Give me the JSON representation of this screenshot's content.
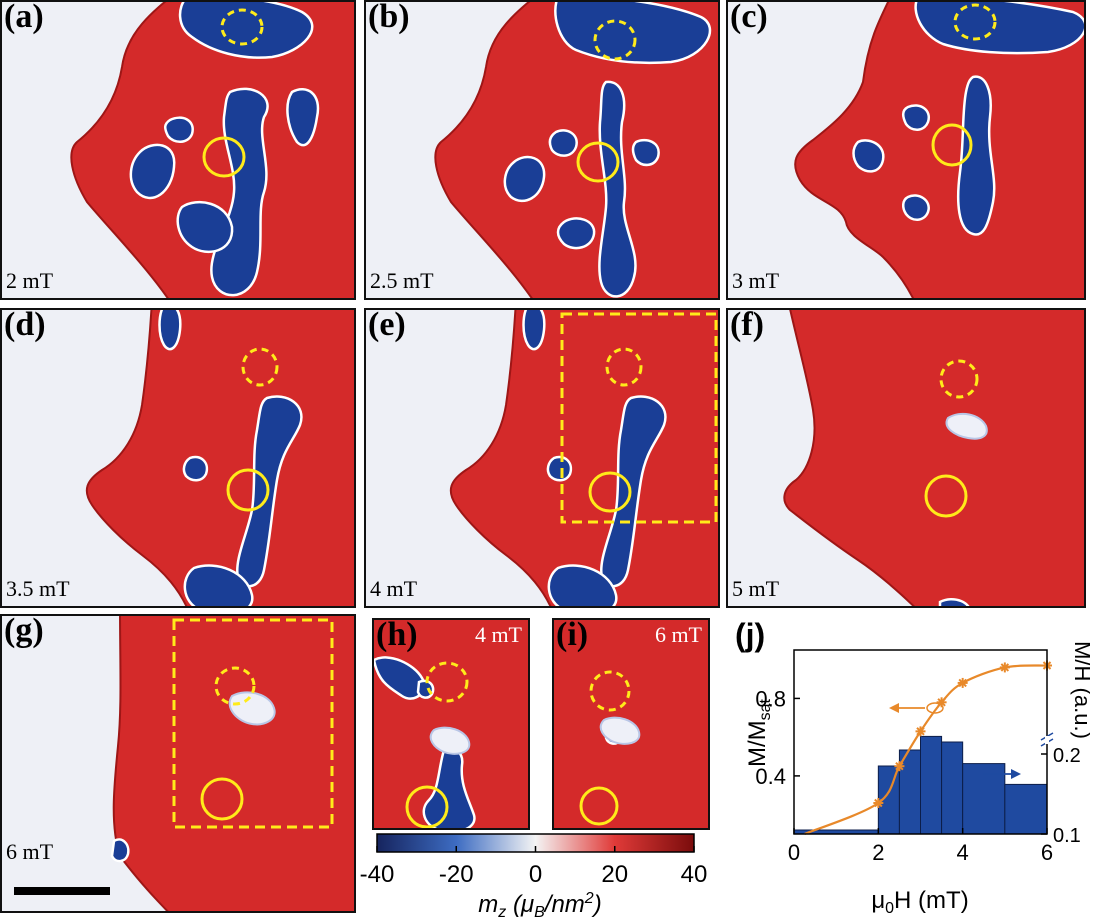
{
  "panels": [
    {
      "id": "a",
      "label": "(a)",
      "field": "2 mT"
    },
    {
      "id": "b",
      "label": "(b)",
      "field": "2.5 mT"
    },
    {
      "id": "c",
      "label": "(c)",
      "field": "3 mT"
    },
    {
      "id": "d",
      "label": "(d)",
      "field": "3.5 mT"
    },
    {
      "id": "e",
      "label": "(e)",
      "field": "4 mT"
    },
    {
      "id": "f",
      "label": "(f)",
      "field": "5 mT"
    },
    {
      "id": "g",
      "label": "(g)",
      "field": "6 mT"
    },
    {
      "id": "h",
      "label": "(h)",
      "field": "4 mT"
    },
    {
      "id": "i",
      "label": "(i)",
      "field": "6 mT"
    }
  ],
  "colors": {
    "background": "#eef0f6",
    "red": "#d42a2a",
    "dark_red": "#9e1616",
    "blue": "#1a3e96",
    "outline": "#ffffff",
    "marker": "#ffeb1a",
    "curve": "#e8892a",
    "bars": "#1f4aa0"
  },
  "colorbar": {
    "ticks": [
      "-40",
      "-20",
      "0",
      "20",
      "40"
    ],
    "label": "m_z (μ_B/nm²)",
    "label_parts": {
      "var": "m",
      "var_sub": "z",
      "open": " (",
      "unit": "μ",
      "unit_sub": "B",
      "rest": "/nm",
      "sup": "2",
      "close": ")"
    }
  },
  "panel_j": {
    "label": "(j)",
    "xlabel": "μ0H (mT)",
    "xlabel_parts": {
      "mu": "μ",
      "sub": "0",
      "rest": "H (mT)"
    },
    "ylabel_left": "M/Msat",
    "ylabel_left_parts": {
      "main": "M/M",
      "sub": "sat"
    },
    "ylabel_right": "M/H (a.u.)",
    "xticks": [
      "0",
      "2",
      "4",
      "6"
    ],
    "yticks_left": [
      "0.4",
      "0.8"
    ],
    "yticks_right": [
      "0.1",
      "0.2"
    ]
  },
  "chart_data": {
    "type": "line",
    "xlabel": "μ0H (mT)",
    "ylabel": "M/Msat",
    "xlim": [
      0,
      6
    ],
    "ylim": [
      0.1,
      1.05
    ],
    "grid": false,
    "series": [
      {
        "axis": "left",
        "x": [
          0.25,
          2,
          2.5,
          3,
          3.5,
          4,
          5,
          6
        ],
        "y": [
          0.1,
          0.26,
          0.45,
          0.63,
          0.78,
          0.88,
          0.96,
          0.97
        ]
      },
      {
        "axis": "right",
        "type": "bar",
        "bin_edges": [
          0,
          2,
          2.5,
          3,
          3.5,
          4,
          5,
          6
        ],
        "values": [
          0.105,
          0.185,
          0.205,
          0.222,
          0.215,
          0.188,
          0.162
        ]
      }
    ],
    "y2lim": [
      0.1,
      0.25
    ]
  }
}
